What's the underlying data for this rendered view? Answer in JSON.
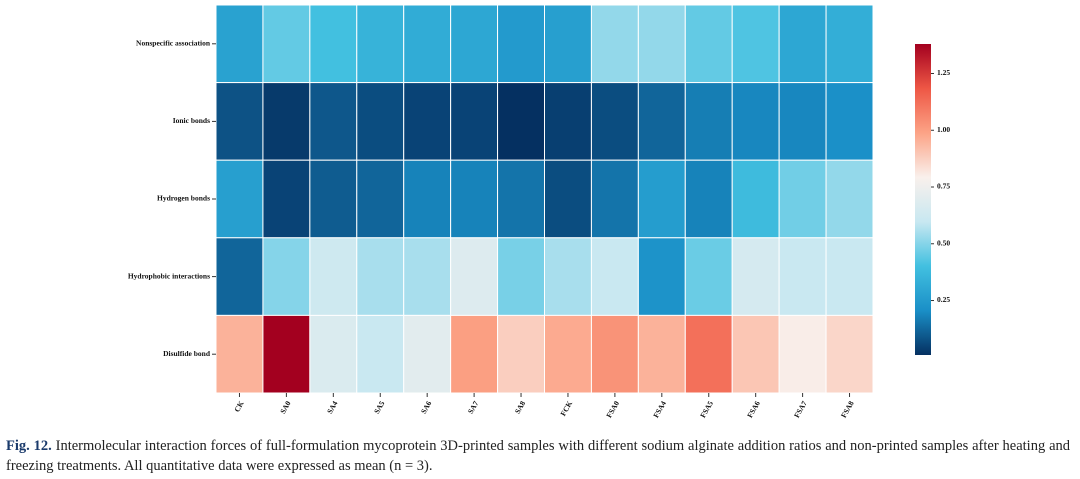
{
  "chart_data": {
    "type": "heatmap",
    "x_categories": [
      "CK",
      "SA0",
      "SA4",
      "SA5",
      "SA6",
      "SA7",
      "SA8",
      "FCK",
      "FSA0",
      "FSA4",
      "FSA5",
      "FSA6",
      "FSA7",
      "FSA8"
    ],
    "y_categories": [
      "Nonspecific association",
      "Ionic bonds",
      "Hydrogen bonds",
      "Hydrophobic interactions",
      "Disulfide bond"
    ],
    "values": [
      [
        0.28,
        0.45,
        0.4,
        0.35,
        0.32,
        0.3,
        0.25,
        0.27,
        0.52,
        0.52,
        0.45,
        0.42,
        0.3,
        0.33
      ],
      [
        0.08,
        0.03,
        0.09,
        0.07,
        0.05,
        0.05,
        0.01,
        0.04,
        0.07,
        0.12,
        0.17,
        0.19,
        0.19,
        0.21
      ],
      [
        0.27,
        0.05,
        0.1,
        0.12,
        0.18,
        0.18,
        0.15,
        0.07,
        0.15,
        0.26,
        0.18,
        0.38,
        0.47,
        0.52
      ],
      [
        0.12,
        0.5,
        0.62,
        0.55,
        0.55,
        0.68,
        0.48,
        0.55,
        0.6,
        0.22,
        0.46,
        0.65,
        0.6,
        0.6
      ],
      [
        0.95,
        1.38,
        0.67,
        0.6,
        0.7,
        1.0,
        0.88,
        0.97,
        1.03,
        0.95,
        1.12,
        0.9,
        0.8,
        0.86
      ]
    ],
    "clim": [
      0.01,
      1.38
    ],
    "colorbar_ticks": [
      0.25,
      {
        "value": 0.5,
        "label": "0.50"
      },
      0.75,
      {
        "value": 1,
        "label": "1.00"
      },
      1.25
    ],
    "colorscale": [
      "#053061",
      "#1a8fc7",
      "#42c0e0",
      "#c8e8f1",
      "#f9f0ec",
      "#fca386",
      "#ee5745",
      "#a3001f"
    ]
  },
  "caption": {
    "label": "Fig. 12.",
    "text": "Intermolecular interaction forces of full-formulation mycoprotein 3D-printed samples with different sodium alginate addition ratios and non-printed samples after heating and freezing treatments. All quantitative data were expressed as mean (n = 3)."
  }
}
